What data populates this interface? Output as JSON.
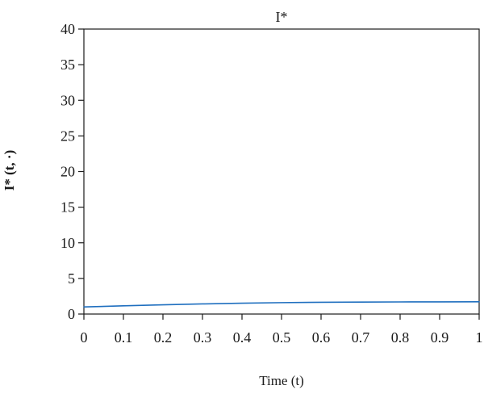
{
  "chart_data": {
    "type": "line",
    "title": "I*",
    "xlabel": "Time (t)",
    "ylabel": "I* (t, ·)",
    "xlim": [
      0,
      1
    ],
    "ylim": [
      0,
      40
    ],
    "x_ticks": [
      "0",
      "0.1",
      "0.2",
      "0.3",
      "0.4",
      "0.5",
      "0.6",
      "0.7",
      "0.8",
      "0.9",
      "1"
    ],
    "y_ticks": [
      "0",
      "5",
      "10",
      "15",
      "20",
      "25",
      "30",
      "35",
      "40"
    ],
    "grid": false,
    "series": [
      {
        "color": "#1f6fbf",
        "x": [
          0,
          0.1,
          0.2,
          0.3,
          0.4,
          0.5,
          0.6,
          0.7,
          0.8,
          0.9,
          1.0
        ],
        "y": [
          1.0,
          1.15,
          1.3,
          1.42,
          1.52,
          1.6,
          1.65,
          1.68,
          1.7,
          1.71,
          1.72
        ]
      }
    ]
  }
}
